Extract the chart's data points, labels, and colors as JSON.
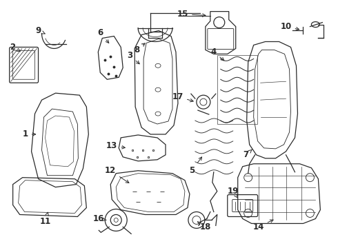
{
  "background_color": "#ffffff",
  "line_color": "#2a2a2a",
  "label_color": "#000000",
  "label_fontsize": 8.5,
  "fig_width": 4.9,
  "fig_height": 3.6,
  "dpi": 100,
  "lw": 0.9
}
